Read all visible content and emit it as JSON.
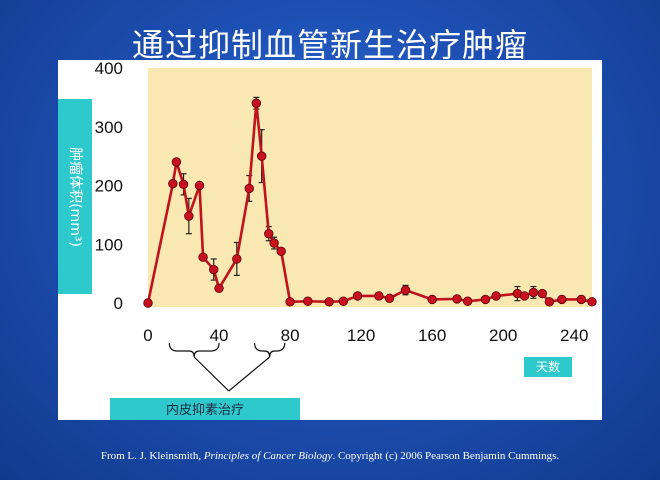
{
  "slide": {
    "title": "通过抑制血管新生治疗肿瘤",
    "credit_prefix": "From L. J. Kleinsmith, ",
    "credit_book": "Principles of Cancer Biology",
    "credit_suffix": ". Copyright (c) 2006 Pearson Benjamin Cummings."
  },
  "colors": {
    "plot_bg": "#f9e8b1",
    "label_box": "#2ec9cc",
    "series": "#c0121d",
    "marker": "#c8101e"
  },
  "chart_data": {
    "type": "line",
    "title": "",
    "ylabel": "肿瘤体积(mm³)",
    "xlabel": "天数",
    "xlim": [
      0,
      250
    ],
    "ylim": [
      0,
      400
    ],
    "xticks": [
      0,
      40,
      80,
      120,
      160,
      200,
      240
    ],
    "yticks": [
      0,
      100,
      200,
      300,
      400
    ],
    "annotation": "内皮抑素治疗",
    "treatment_periods": [
      [
        12,
        40
      ],
      [
        60,
        77
      ]
    ],
    "series": [
      {
        "x": [
          0,
          14,
          16,
          20,
          23,
          29,
          31,
          37,
          40,
          50,
          57,
          61,
          64,
          68,
          71,
          75,
          80,
          90,
          102,
          110,
          118,
          130,
          136,
          145,
          160,
          174,
          180,
          190,
          196,
          208,
          212,
          217,
          222,
          226,
          233,
          244,
          250
        ],
        "y": [
          0,
          203,
          240,
          202,
          148,
          200,
          78,
          57,
          25,
          75,
          195,
          340,
          250,
          118,
          102,
          88,
          2,
          3,
          2,
          3,
          12,
          12,
          8,
          22,
          6,
          7,
          3,
          6,
          12,
          16,
          12,
          18,
          16,
          2,
          6,
          6,
          2
        ],
        "err": [
          0,
          0,
          0,
          18,
          30,
          0,
          0,
          18,
          0,
          28,
          22,
          10,
          45,
          12,
          10,
          0,
          0,
          0,
          0,
          0,
          0,
          0,
          0,
          8,
          0,
          0,
          0,
          0,
          0,
          12,
          0,
          10,
          0,
          0,
          0,
          0,
          0
        ]
      }
    ]
  }
}
